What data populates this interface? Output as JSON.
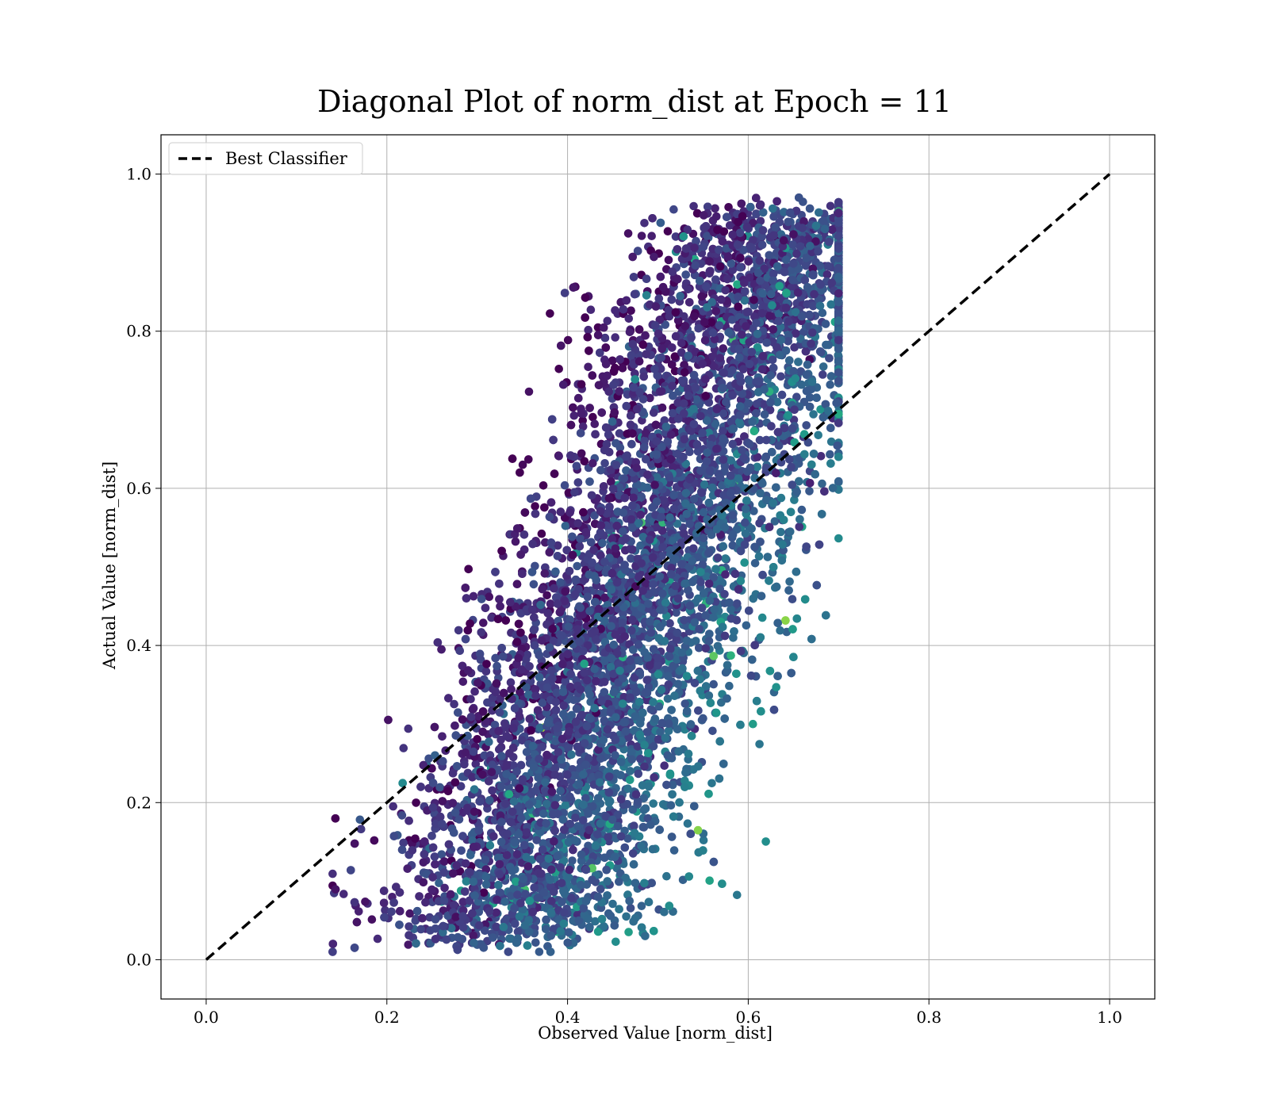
{
  "chart_data": {
    "type": "scatter",
    "title": "Diagonal Plot of norm_dist at Epoch = 11",
    "xlabel": "Observed Value [norm_dist]",
    "ylabel": "Actual Value [norm_dist]",
    "xlim": [
      -0.05,
      1.05
    ],
    "ylim": [
      -0.05,
      1.05
    ],
    "x_ticks": [
      "0.0",
      "0.2",
      "0.4",
      "0.6",
      "0.8",
      "1.0"
    ],
    "y_ticks": [
      "0.0",
      "0.2",
      "0.4",
      "0.6",
      "0.8",
      "1.0"
    ],
    "grid": true,
    "colormap": "viridis",
    "legend": {
      "placement": "top-left",
      "entries": [
        {
          "label": "Best Classifier",
          "style": "dashed",
          "color": "#000000"
        }
      ]
    },
    "reference_line": {
      "name": "Best Classifier",
      "x": [
        0.0,
        1.0
      ],
      "y": [
        0.0,
        1.0
      ],
      "color": "#000000",
      "style": "dashed"
    },
    "scatter_description": {
      "approx_x_range": [
        0.14,
        0.7
      ],
      "approx_y_range": [
        0.01,
        0.97
      ],
      "note": "dense point cloud colored by viridis colormap (mostly dark purple to teal, few yellow-green)"
    }
  }
}
